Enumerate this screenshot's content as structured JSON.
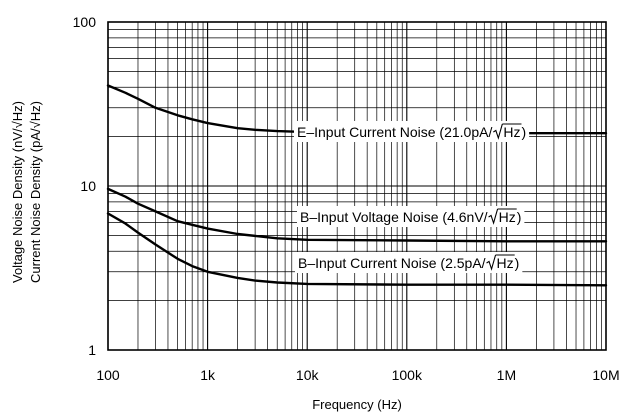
{
  "chart_data": {
    "type": "line",
    "xlabel": "Frequency (Hz)",
    "ylabel_lines": [
      "Voltage Noise Density (nV/√Hz)",
      "Current Noise Density (pA/√Hz)"
    ],
    "x_scale": "log",
    "y_scale": "log",
    "xlim": [
      100,
      10000000
    ],
    "ylim": [
      1,
      100
    ],
    "grid": true,
    "x_ticks": [
      {
        "value": 100,
        "label": "100"
      },
      {
        "value": 1000,
        "label": "1k"
      },
      {
        "value": 10000,
        "label": "10k"
      },
      {
        "value": 100000,
        "label": "100k"
      },
      {
        "value": 1000000,
        "label": "1M"
      },
      {
        "value": 10000000,
        "label": "10M"
      }
    ],
    "y_ticks": [
      {
        "value": 1,
        "label": "1"
      },
      {
        "value": 10,
        "label": "10"
      },
      {
        "value": 100,
        "label": "100"
      }
    ],
    "series": [
      {
        "name": "E–Input Current Noise (21.0pA/√Hz)",
        "label_pre": "E–Input Current Noise (21.0pA/",
        "label_post": ")",
        "x": [
          100,
          150,
          200,
          300,
          500,
          700,
          1000,
          2000,
          3000,
          5000,
          10000,
          100000,
          1000000,
          10000000
        ],
        "y": [
          41,
          37,
          34,
          30,
          27,
          25.5,
          24.2,
          22.5,
          22.0,
          21.6,
          21.3,
          21.1,
          21.0,
          21.0
        ]
      },
      {
        "name": "B–Input Voltage Noise (4.6nV/√Hz)",
        "label_pre": "B–Input Voltage Noise (4.6nV/",
        "label_post": ")",
        "x": [
          100,
          150,
          200,
          300,
          500,
          700,
          1000,
          2000,
          5000,
          10000,
          100000,
          1000000,
          10000000
        ],
        "y": [
          9.6,
          8.6,
          7.8,
          7.0,
          6.1,
          5.8,
          5.5,
          5.1,
          4.8,
          4.7,
          4.65,
          4.6,
          4.6
        ]
      },
      {
        "name": "B–Input Current Noise (2.5pA/√Hz)",
        "label_pre": "B–Input Current Noise (2.5pA/",
        "label_post": ")",
        "x": [
          100,
          150,
          200,
          300,
          500,
          700,
          1000,
          2000,
          3000,
          5000,
          10000,
          100000,
          1000000,
          10000000
        ],
        "y": [
          6.8,
          5.9,
          5.2,
          4.4,
          3.6,
          3.25,
          3.0,
          2.75,
          2.65,
          2.58,
          2.53,
          2.5,
          2.5,
          2.48
        ]
      }
    ]
  }
}
